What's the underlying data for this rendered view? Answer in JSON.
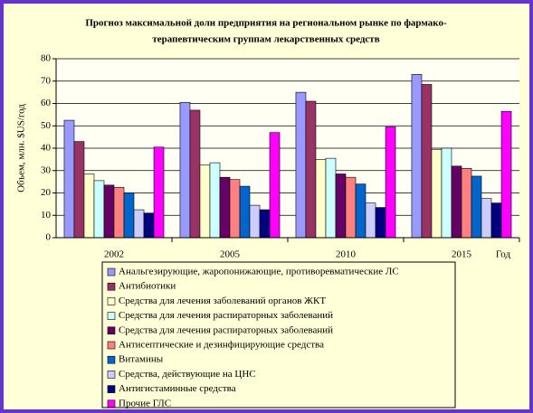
{
  "chart_data": {
    "type": "bar",
    "title": [
      "Прогноз максимальной доли предприятия на региональном рынке по фармако-",
      "терапевтическим группам лекарственных средств"
    ],
    "y_label": "Объем, млн. $US/год",
    "x_label": "Год",
    "categories": [
      "2002",
      "2005",
      "2010",
      "2015"
    ],
    "ylim": [
      0,
      80
    ],
    "yticks": [
      0,
      10,
      20,
      30,
      40,
      50,
      60,
      70,
      80
    ],
    "grid": true,
    "series": [
      {
        "name": "Анальгезирующие, жаропонижающие, противоревматические ЛС",
        "color": "#9999ff",
        "values": [
          52.5,
          60.5,
          65,
          73
        ]
      },
      {
        "name": "Антибиотики",
        "color": "#993366",
        "values": [
          43,
          57,
          61,
          68.5
        ]
      },
      {
        "name": "Средства для лечения заболеваний органов ЖКТ",
        "color": "#ffffcc",
        "values": [
          28.5,
          32.5,
          35,
          39.5
        ]
      },
      {
        "name": "Средства для лечения распираторных заболеваний",
        "color": "#ccffff",
        "values": [
          25.5,
          33.5,
          35.5,
          40
        ]
      },
      {
        "name": "Средства для лечения распираторных заболеваний",
        "color": "#660066",
        "values": [
          23.5,
          27,
          28.5,
          32
        ]
      },
      {
        "name": "Антисептические и дезинфицирующие средства",
        "color": "#ff8080",
        "values": [
          22.5,
          26,
          27,
          31
        ]
      },
      {
        "name": "Витамины",
        "color": "#0066cc",
        "values": [
          20,
          23,
          24,
          27.5
        ]
      },
      {
        "name": "Средства, действующие на ЦНС",
        "color": "#ccccff",
        "values": [
          12.5,
          14.5,
          15.5,
          17.5
        ]
      },
      {
        "name": "Антигистаминные средства",
        "color": "#000080",
        "values": [
          11,
          12.5,
          13.5,
          15.5
        ]
      },
      {
        "name": "Прочие ГЛС",
        "color": "#ff00ff",
        "values": [
          40.5,
          47,
          49.5,
          56.5
        ]
      }
    ]
  }
}
